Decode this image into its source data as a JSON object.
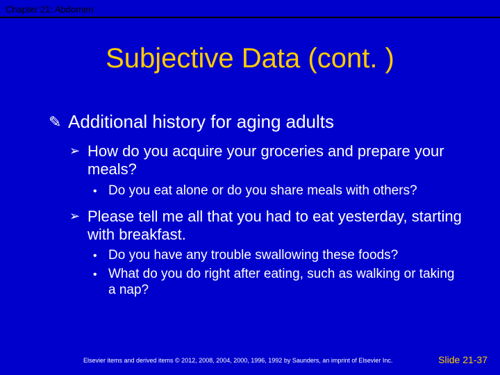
{
  "colors": {
    "background": "#0000cc",
    "title": "#ffcc00",
    "body_text": "#ffffff",
    "header_text": "#000000",
    "slide_number": "#ffcc00"
  },
  "typography": {
    "title_fontsize": 40,
    "level1_fontsize": 26,
    "level2_fontsize": 22,
    "level3_fontsize": 19,
    "header_fontsize": 13,
    "copyright_fontsize": 9,
    "slidenum_fontsize": 14,
    "font_family": "Arial"
  },
  "header": {
    "chapter": "Chapter 21: Abdomen"
  },
  "title": "Subjective Data (cont. )",
  "bullets": {
    "l1_0": "Additional history for aging adults",
    "l2_0": "How do you acquire your groceries and prepare your meals?",
    "l3_0": "Do you eat alone or do you share meals with others?",
    "l2_1": "Please tell me all that you had to eat yesterday, starting with breakfast.",
    "l3_1": "Do you have any trouble swallowing these foods?",
    "l3_2": "What do you do right after eating, such as walking or taking a nap?"
  },
  "bullet_symbols": {
    "level1": "✎",
    "level2": "➢",
    "level3": "•"
  },
  "footer": {
    "copyright": "Elsevier items and derived items © 2012, 2008, 2004, 2000, 1996, 1992 by Saunders, an imprint of Elsevier Inc.",
    "slide_number": "Slide 21-37"
  }
}
